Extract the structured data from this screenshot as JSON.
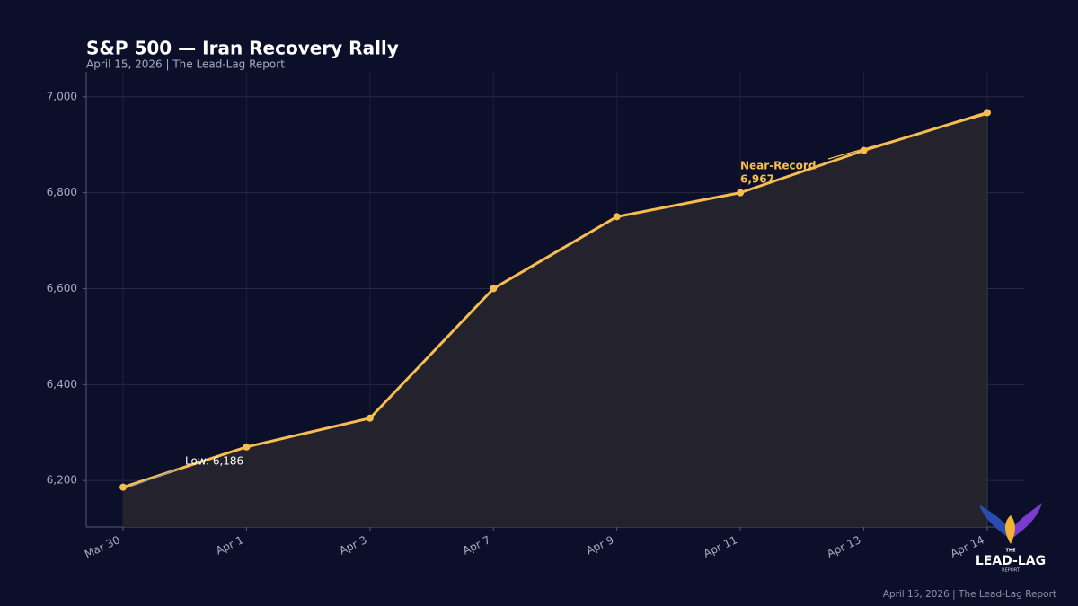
{
  "chart_data": {
    "type": "line",
    "title": "S&P 500 — Iran Recovery Rally",
    "subtitle": "April 15, 2026  |  The Lead-Lag Report",
    "footer": "April 15, 2026  |  The Lead-Lag Report",
    "categories": [
      "Mar 30",
      "Apr 1",
      "Apr 3",
      "Apr 7",
      "Apr 9",
      "Apr 11",
      "Apr 13",
      "Apr 14"
    ],
    "values": [
      6186,
      6270,
      6330,
      6600,
      6750,
      6800,
      6888,
      6967
    ],
    "color": "#f7bd4f",
    "ylim": [
      6103,
      7052
    ],
    "yticks": [
      {
        "value": 6200,
        "label": "6,200"
      },
      {
        "value": 6400,
        "label": "6,400"
      },
      {
        "value": 6600,
        "label": "6,600"
      },
      {
        "value": 6800,
        "label": "6,800"
      },
      {
        "value": 7000,
        "label": "7,000"
      }
    ],
    "grid": true,
    "annotations": [
      {
        "lines": [
          "Low: 6,186"
        ],
        "color": "#ffffff"
      },
      {
        "lines": [
          "Near-Record",
          "6,967"
        ],
        "color": "#f7bd4f"
      }
    ],
    "logo": {
      "top": "THE",
      "main": "LEAD-LAG",
      "bottom": "REPORT"
    }
  }
}
